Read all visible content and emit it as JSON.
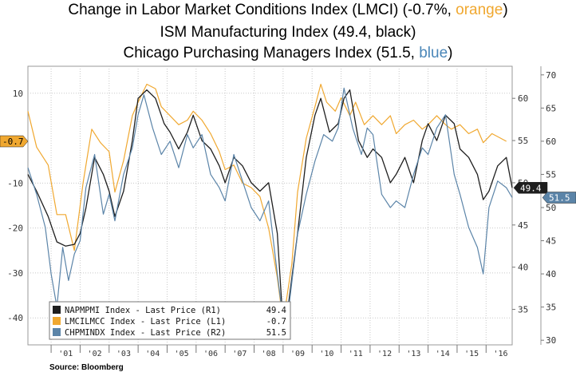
{
  "titles": {
    "line1_a": "Change in Labor Market Conditions Index (LMCI) (-0.7%, ",
    "line1_color": "orange",
    "line1_b": ")",
    "line2": "ISM Manufacturing Index (49.4, black)",
    "line3_a": "Chicago Purchasing Managers Index (51.5, ",
    "line3_color": "blue",
    "line3_b": ")"
  },
  "source": "Source: Bloomberg",
  "colors": {
    "orange": "#f0a830",
    "black": "#1e1e1e",
    "blue": "#5b84a8",
    "grid": "#c8c8c8"
  },
  "chart_data": {
    "type": "line",
    "x_ticks": [
      "'01",
      "'02",
      "'03",
      "'04",
      "'05",
      "'06",
      "'07",
      "'08",
      "'09",
      "'10",
      "'11",
      "'12",
      "'13",
      "'14",
      "'15",
      "'16"
    ],
    "xlim": [
      2000.2,
      2016.9
    ],
    "axes": {
      "L1": {
        "ylim": [
          -46,
          16
        ],
        "ticks": [
          10,
          -10,
          -20,
          -30,
          -40
        ]
      },
      "R1": {
        "ylim": [
          30.8,
          63.8
        ],
        "ticks": [
          60,
          55,
          50,
          45,
          40,
          35
        ]
      },
      "R2": {
        "ylim": [
          29.3,
          71.3
        ],
        "ticks": [
          70,
          65,
          60,
          55,
          50,
          45,
          40,
          35,
          30
        ]
      }
    },
    "series": [
      {
        "legend": "LMCILMCC Index - Last Price (L1)",
        "legend_value": "-0.7",
        "axis": "L1",
        "color_key": "orange",
        "end_tag": "-0.7",
        "points": [
          [
            2000.2,
            6
          ],
          [
            2000.5,
            -2
          ],
          [
            2000.9,
            -6
          ],
          [
            2001.2,
            -17
          ],
          [
            2001.5,
            -17
          ],
          [
            2001.8,
            -25
          ],
          [
            2002.1,
            -10
          ],
          [
            2002.4,
            2
          ],
          [
            2002.7,
            -1
          ],
          [
            2003.0,
            -3
          ],
          [
            2003.2,
            -12
          ],
          [
            2003.5,
            -5
          ],
          [
            2003.8,
            5
          ],
          [
            2004.0,
            8
          ],
          [
            2004.3,
            12
          ],
          [
            2004.6,
            11
          ],
          [
            2004.8,
            7
          ],
          [
            2005.1,
            5
          ],
          [
            2005.4,
            3
          ],
          [
            2005.7,
            4
          ],
          [
            2005.9,
            6
          ],
          [
            2006.2,
            4
          ],
          [
            2006.5,
            1
          ],
          [
            2006.8,
            -3
          ],
          [
            2007.0,
            -7
          ],
          [
            2007.3,
            -6
          ],
          [
            2007.6,
            -10
          ],
          [
            2007.9,
            -11
          ],
          [
            2008.2,
            -13
          ],
          [
            2008.5,
            -20
          ],
          [
            2008.8,
            -31
          ],
          [
            2009.0,
            -41
          ],
          [
            2009.3,
            -28
          ],
          [
            2009.5,
            -12
          ],
          [
            2009.8,
            0
          ],
          [
            2010.1,
            7
          ],
          [
            2010.3,
            12
          ],
          [
            2010.5,
            8
          ],
          [
            2010.8,
            6
          ],
          [
            2011.0,
            9
          ],
          [
            2011.3,
            5
          ],
          [
            2011.5,
            8
          ],
          [
            2011.8,
            3
          ],
          [
            2012.1,
            5
          ],
          [
            2012.4,
            3
          ],
          [
            2012.7,
            5
          ],
          [
            2012.9,
            1
          ],
          [
            2013.2,
            3
          ],
          [
            2013.5,
            4
          ],
          [
            2013.8,
            2
          ],
          [
            2014.0,
            3
          ],
          [
            2014.3,
            5
          ],
          [
            2014.6,
            3
          ],
          [
            2014.8,
            2
          ],
          [
            2015.1,
            3
          ],
          [
            2015.4,
            1
          ],
          [
            2015.7,
            2
          ],
          [
            2015.9,
            -1
          ],
          [
            2016.2,
            1
          ],
          [
            2016.5,
            0
          ],
          [
            2016.7,
            -0.7
          ]
        ]
      },
      {
        "legend": "NAPMPMI Index - Last Price (R1)",
        "legend_value": "49.4",
        "axis": "R1",
        "color_key": "black",
        "end_tag": "49.4",
        "points": [
          [
            2000.2,
            51
          ],
          [
            2000.5,
            49
          ],
          [
            2000.9,
            46
          ],
          [
            2001.2,
            43
          ],
          [
            2001.5,
            42.5
          ],
          [
            2001.8,
            42.7
          ],
          [
            2002.0,
            44
          ],
          [
            2002.2,
            47
          ],
          [
            2002.5,
            53
          ],
          [
            2002.8,
            51
          ],
          [
            2003.0,
            49
          ],
          [
            2003.2,
            46
          ],
          [
            2003.5,
            49
          ],
          [
            2003.8,
            55
          ],
          [
            2004.0,
            60
          ],
          [
            2004.3,
            61
          ],
          [
            2004.6,
            60
          ],
          [
            2004.9,
            57
          ],
          [
            2005.1,
            56
          ],
          [
            2005.4,
            54
          ],
          [
            2005.7,
            56
          ],
          [
            2005.9,
            58
          ],
          [
            2006.2,
            55
          ],
          [
            2006.5,
            54
          ],
          [
            2006.8,
            52
          ],
          [
            2007.0,
            50
          ],
          [
            2007.3,
            53
          ],
          [
            2007.6,
            52
          ],
          [
            2007.9,
            50
          ],
          [
            2008.2,
            49
          ],
          [
            2008.5,
            50
          ],
          [
            2008.8,
            44
          ],
          [
            2009.0,
            33
          ],
          [
            2009.2,
            36
          ],
          [
            2009.5,
            44
          ],
          [
            2009.8,
            53
          ],
          [
            2010.1,
            58
          ],
          [
            2010.3,
            60
          ],
          [
            2010.6,
            56
          ],
          [
            2010.9,
            57
          ],
          [
            2011.1,
            60
          ],
          [
            2011.3,
            61
          ],
          [
            2011.6,
            55
          ],
          [
            2011.9,
            53
          ],
          [
            2012.1,
            54
          ],
          [
            2012.4,
            53
          ],
          [
            2012.7,
            50
          ],
          [
            2012.9,
            51
          ],
          [
            2013.2,
            53
          ],
          [
            2013.5,
            50
          ],
          [
            2013.8,
            55
          ],
          [
            2014.0,
            57
          ],
          [
            2014.3,
            55
          ],
          [
            2014.6,
            58
          ],
          [
            2014.9,
            57
          ],
          [
            2015.1,
            54
          ],
          [
            2015.4,
            53
          ],
          [
            2015.7,
            51
          ],
          [
            2015.9,
            48
          ],
          [
            2016.1,
            49
          ],
          [
            2016.4,
            52
          ],
          [
            2016.7,
            53
          ],
          [
            2016.9,
            49.4
          ]
        ]
      },
      {
        "legend": "CHPMINDX Index - Last Price (R2)",
        "legend_value": "51.5",
        "axis": "R2",
        "color_key": "blue",
        "end_tag": "51.5",
        "points": [
          [
            2000.2,
            56
          ],
          [
            2000.5,
            52
          ],
          [
            2000.8,
            47
          ],
          [
            2001.0,
            40
          ],
          [
            2001.2,
            35
          ],
          [
            2001.4,
            44
          ],
          [
            2001.6,
            39
          ],
          [
            2001.8,
            43
          ],
          [
            2002.0,
            45
          ],
          [
            2002.2,
            53
          ],
          [
            2002.5,
            58
          ],
          [
            2002.8,
            49
          ],
          [
            2003.0,
            52
          ],
          [
            2003.2,
            48
          ],
          [
            2003.5,
            55
          ],
          [
            2003.8,
            59
          ],
          [
            2004.0,
            64
          ],
          [
            2004.2,
            67
          ],
          [
            2004.5,
            62
          ],
          [
            2004.8,
            58
          ],
          [
            2005.1,
            60
          ],
          [
            2005.4,
            56
          ],
          [
            2005.7,
            61
          ],
          [
            2005.9,
            59
          ],
          [
            2006.2,
            61
          ],
          [
            2006.5,
            55
          ],
          [
            2006.8,
            53
          ],
          [
            2007.0,
            51
          ],
          [
            2007.3,
            58
          ],
          [
            2007.6,
            54
          ],
          [
            2007.9,
            50
          ],
          [
            2008.2,
            48
          ],
          [
            2008.5,
            51
          ],
          [
            2008.8,
            40
          ],
          [
            2009.0,
            33
          ],
          [
            2009.2,
            35
          ],
          [
            2009.5,
            46
          ],
          [
            2009.8,
            52
          ],
          [
            2010.1,
            57
          ],
          [
            2010.4,
            61
          ],
          [
            2010.7,
            60
          ],
          [
            2010.9,
            62
          ],
          [
            2011.1,
            68
          ],
          [
            2011.4,
            62
          ],
          [
            2011.7,
            58
          ],
          [
            2011.9,
            62
          ],
          [
            2012.1,
            61
          ],
          [
            2012.4,
            52
          ],
          [
            2012.7,
            50
          ],
          [
            2012.9,
            51
          ],
          [
            2013.2,
            50
          ],
          [
            2013.5,
            55
          ],
          [
            2013.8,
            59
          ],
          [
            2014.0,
            58
          ],
          [
            2014.3,
            62
          ],
          [
            2014.6,
            64
          ],
          [
            2014.9,
            55
          ],
          [
            2015.1,
            52
          ],
          [
            2015.4,
            47
          ],
          [
            2015.7,
            44
          ],
          [
            2015.9,
            40
          ],
          [
            2016.1,
            50
          ],
          [
            2016.4,
            54
          ],
          [
            2016.7,
            53
          ],
          [
            2016.9,
            51.5
          ]
        ]
      }
    ]
  }
}
